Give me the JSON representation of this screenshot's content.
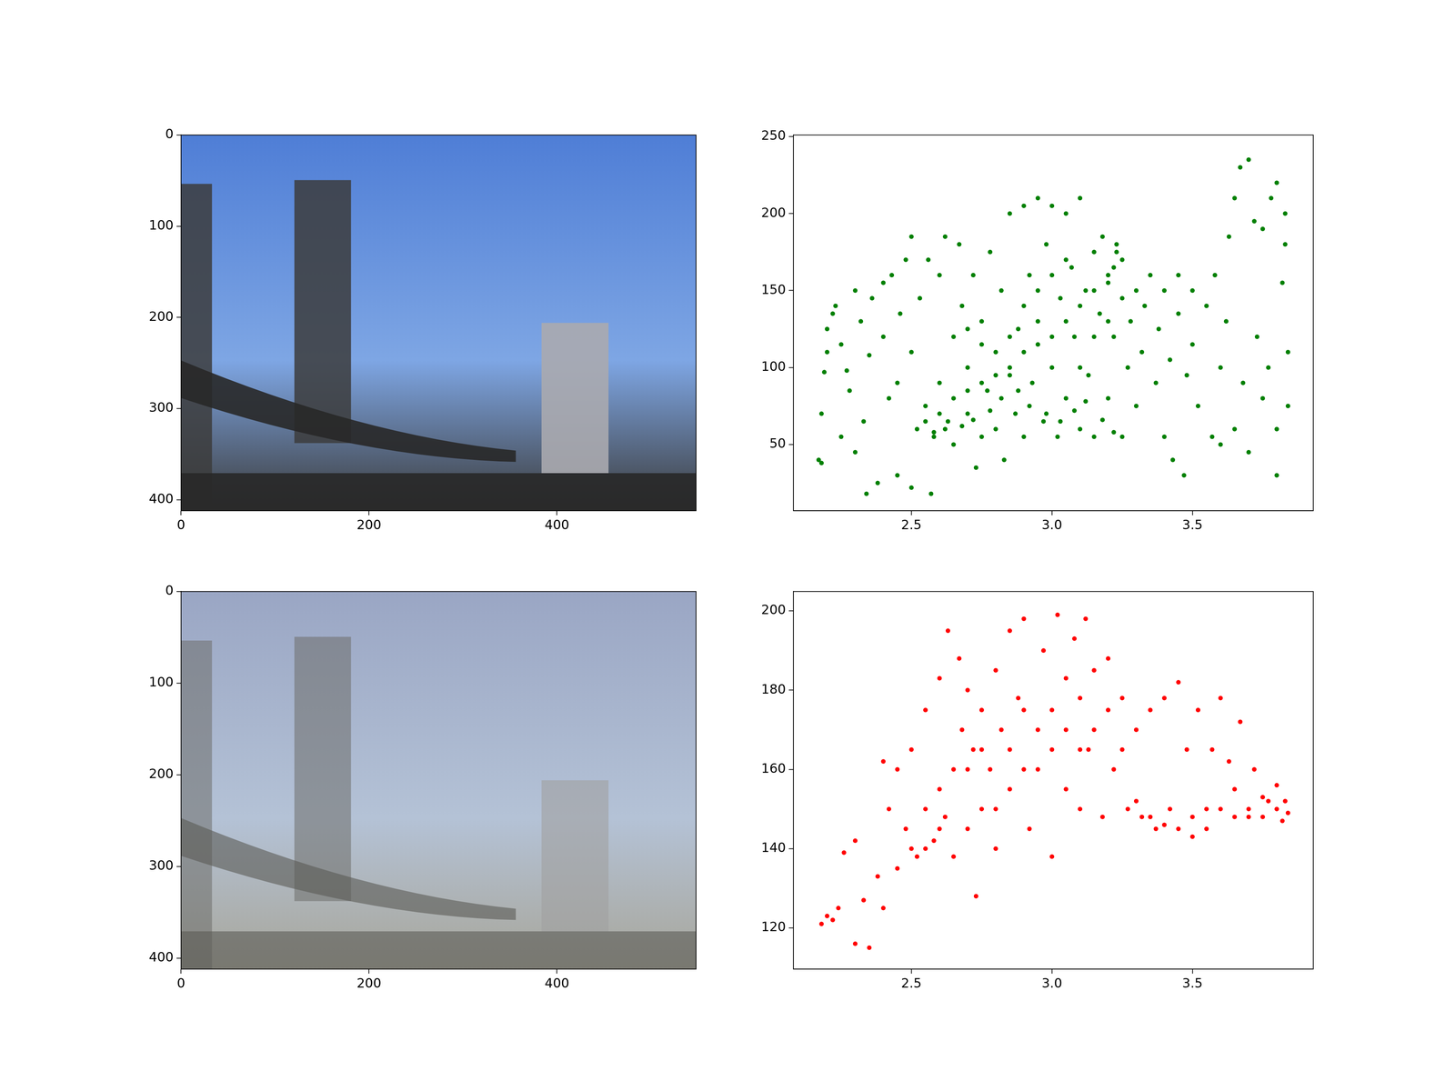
{
  "chart_data": [
    {
      "type": "image",
      "xlim": [
        0,
        548
      ],
      "ylim": [
        412,
        0
      ],
      "xticks": [
        0,
        200,
        400
      ],
      "yticks": [
        0,
        100,
        200,
        300,
        400
      ],
      "grid": false
    },
    {
      "type": "scatter",
      "color": "#008000",
      "marker": "o",
      "grid": false,
      "xlim": [
        2.08,
        3.93
      ],
      "ylim": [
        7,
        251
      ],
      "xticks": [
        2.5,
        {
          "value": 3,
          "label": "3.0"
        },
        3.5
      ],
      "yticks": [
        50,
        100,
        150,
        200,
        250
      ],
      "x": [
        2.17,
        2.18,
        2.18,
        2.19,
        2.2,
        2.2,
        2.22,
        2.23,
        2.25,
        2.25,
        2.27,
        2.28,
        2.3,
        2.3,
        2.32,
        2.33,
        2.34,
        2.35,
        2.36,
        2.38,
        2.4,
        2.4,
        2.42,
        2.43,
        2.45,
        2.45,
        2.46,
        2.48,
        2.5,
        2.5,
        2.5,
        2.52,
        2.53,
        2.55,
        2.56,
        2.57,
        2.58,
        2.6,
        2.6,
        2.62,
        2.63,
        2.65,
        2.65,
        2.67,
        2.68,
        2.7,
        2.7,
        2.72,
        2.73,
        2.75,
        2.75,
        2.77,
        2.78,
        2.8,
        2.8,
        2.82,
        2.83,
        2.85,
        2.85,
        2.87,
        2.88,
        2.9,
        2.9,
        2.92,
        2.93,
        2.95,
        2.95,
        2.97,
        2.98,
        3.0,
        3.0,
        3.02,
        3.03,
        3.05,
        3.05,
        3.07,
        3.08,
        3.1,
        3.1,
        3.12,
        3.13,
        3.15,
        3.15,
        3.17,
        3.18,
        3.2,
        3.2,
        3.22,
        3.23,
        3.25,
        3.25,
        3.27,
        3.28,
        3.3,
        3.3,
        3.32,
        3.33,
        3.35,
        3.37,
        3.38,
        3.4,
        3.4,
        3.42,
        3.43,
        3.45,
        3.45,
        3.47,
        3.48,
        3.5,
        3.5,
        3.52,
        3.55,
        3.57,
        3.58,
        3.6,
        3.6,
        3.62,
        3.63,
        3.65,
        3.65,
        3.67,
        3.68,
        3.7,
        3.7,
        3.72,
        3.73,
        3.75,
        3.75,
        3.77,
        3.78,
        3.8,
        3.8,
        3.8,
        3.82,
        3.83,
        3.83,
        3.84,
        3.84,
        2.55,
        2.6,
        2.65,
        2.7,
        2.75,
        2.8,
        2.85,
        2.9,
        2.95,
        3.0,
        3.05,
        3.1,
        3.15,
        3.2,
        3.22,
        2.58,
        2.62,
        2.68,
        2.72,
        2.78,
        2.82,
        2.88,
        2.92,
        2.98,
        3.03,
        3.08,
        3.12,
        3.18,
        3.22,
        2.9,
        2.95,
        3.0,
        3.05,
        2.85,
        2.75,
        2.7,
        3.1,
        3.15,
        3.2,
        3.25,
        3.23
      ],
      "values": [
        40,
        38,
        70,
        97,
        110,
        125,
        135,
        140,
        115,
        55,
        98,
        85,
        45,
        150,
        130,
        65,
        18,
        108,
        145,
        25,
        120,
        155,
        80,
        160,
        90,
        30,
        135,
        170,
        185,
        110,
        22,
        60,
        145,
        75,
        170,
        18,
        55,
        90,
        160,
        185,
        65,
        120,
        50,
        180,
        140,
        70,
        100,
        160,
        35,
        55,
        130,
        85,
        175,
        60,
        110,
        150,
        40,
        95,
        200,
        70,
        125,
        205,
        55,
        160,
        90,
        210,
        130,
        65,
        180,
        100,
        205,
        55,
        145,
        200,
        80,
        165,
        120,
        210,
        60,
        150,
        95,
        175,
        55,
        135,
        185,
        80,
        160,
        120,
        175,
        145,
        55,
        100,
        130,
        150,
        75,
        110,
        140,
        160,
        90,
        125,
        150,
        55,
        105,
        40,
        160,
        135,
        30,
        95,
        150,
        115,
        75,
        140,
        55,
        160,
        100,
        50,
        130,
        185,
        60,
        210,
        230,
        90,
        235,
        45,
        195,
        120,
        80,
        190,
        100,
        210,
        220,
        30,
        60,
        155,
        200,
        180,
        110,
        75,
        65,
        70,
        80,
        85,
        90,
        95,
        100,
        110,
        115,
        120,
        130,
        140,
        150,
        155,
        165,
        58,
        60,
        62,
        66,
        72,
        80,
        85,
        75,
        70,
        65,
        72,
        78,
        66,
        58,
        140,
        150,
        160,
        170,
        120,
        115,
        125,
        100,
        120,
        130,
        170,
        180
      ]
    },
    {
      "type": "image",
      "xlim": [
        0,
        548
      ],
      "ylim": [
        412,
        0
      ],
      "xticks": [
        0,
        200,
        400
      ],
      "yticks": [
        0,
        100,
        200,
        300,
        400
      ],
      "grid": false
    },
    {
      "type": "scatter",
      "color": "#ff0000",
      "marker": "o",
      "grid": false,
      "xlim": [
        2.08,
        3.93
      ],
      "ylim": [
        109.6,
        204.9
      ],
      "xticks": [
        2.5,
        {
          "value": 3,
          "label": "3.0"
        },
        3.5
      ],
      "yticks": [
        120,
        140,
        160,
        180,
        200
      ],
      "x": [
        2.18,
        2.2,
        2.22,
        2.24,
        2.26,
        2.3,
        2.3,
        2.33,
        2.35,
        2.38,
        2.4,
        2.4,
        2.42,
        2.45,
        2.45,
        2.48,
        2.5,
        2.5,
        2.52,
        2.55,
        2.55,
        2.58,
        2.6,
        2.6,
        2.62,
        2.63,
        2.65,
        2.65,
        2.67,
        2.68,
        2.7,
        2.7,
        2.72,
        2.73,
        2.75,
        2.75,
        2.78,
        2.8,
        2.8,
        2.82,
        2.85,
        2.85,
        2.88,
        2.9,
        2.9,
        2.92,
        2.95,
        2.97,
        3.0,
        3.0,
        3.02,
        3.05,
        3.05,
        3.08,
        3.1,
        3.1,
        3.12,
        3.13,
        3.15,
        3.18,
        3.2,
        3.2,
        3.22,
        3.25,
        3.27,
        3.3,
        3.32,
        3.35,
        3.37,
        3.4,
        3.42,
        3.45,
        3.45,
        3.48,
        3.5,
        3.52,
        3.55,
        3.57,
        3.6,
        3.6,
        3.63,
        3.65,
        3.67,
        3.7,
        3.72,
        3.75,
        3.77,
        3.8,
        3.8,
        3.82,
        3.83,
        3.84,
        2.8,
        2.85,
        2.9,
        2.95,
        3.0,
        3.05,
        3.1,
        3.15,
        2.7,
        2.75,
        2.6,
        2.55,
        3.35,
        3.4,
        3.3,
        3.25,
        3.55,
        3.5,
        3.65,
        3.7,
        3.75
      ],
      "values": [
        121,
        123,
        122,
        125,
        139,
        142,
        116,
        127,
        115,
        133,
        125,
        162,
        150,
        135,
        160,
        145,
        140,
        165,
        138,
        150,
        175,
        142,
        155,
        183,
        148,
        195,
        160,
        138,
        188,
        170,
        145,
        180,
        165,
        128,
        175,
        150,
        160,
        185,
        140,
        170,
        155,
        195,
        178,
        160,
        198,
        145,
        170,
        190,
        138,
        175,
        199,
        155,
        183,
        193,
        150,
        178,
        198,
        165,
        185,
        148,
        175,
        188,
        160,
        178,
        150,
        170,
        148,
        175,
        145,
        178,
        150,
        182,
        145,
        165,
        148,
        175,
        150,
        165,
        150,
        178,
        162,
        148,
        172,
        150,
        160,
        148,
        152,
        150,
        156,
        147,
        152,
        149,
        150,
        165,
        175,
        160,
        165,
        170,
        165,
        170,
        160,
        165,
        145,
        140,
        148,
        146,
        152,
        165,
        145,
        143,
        155,
        148,
        153
      ]
    }
  ]
}
